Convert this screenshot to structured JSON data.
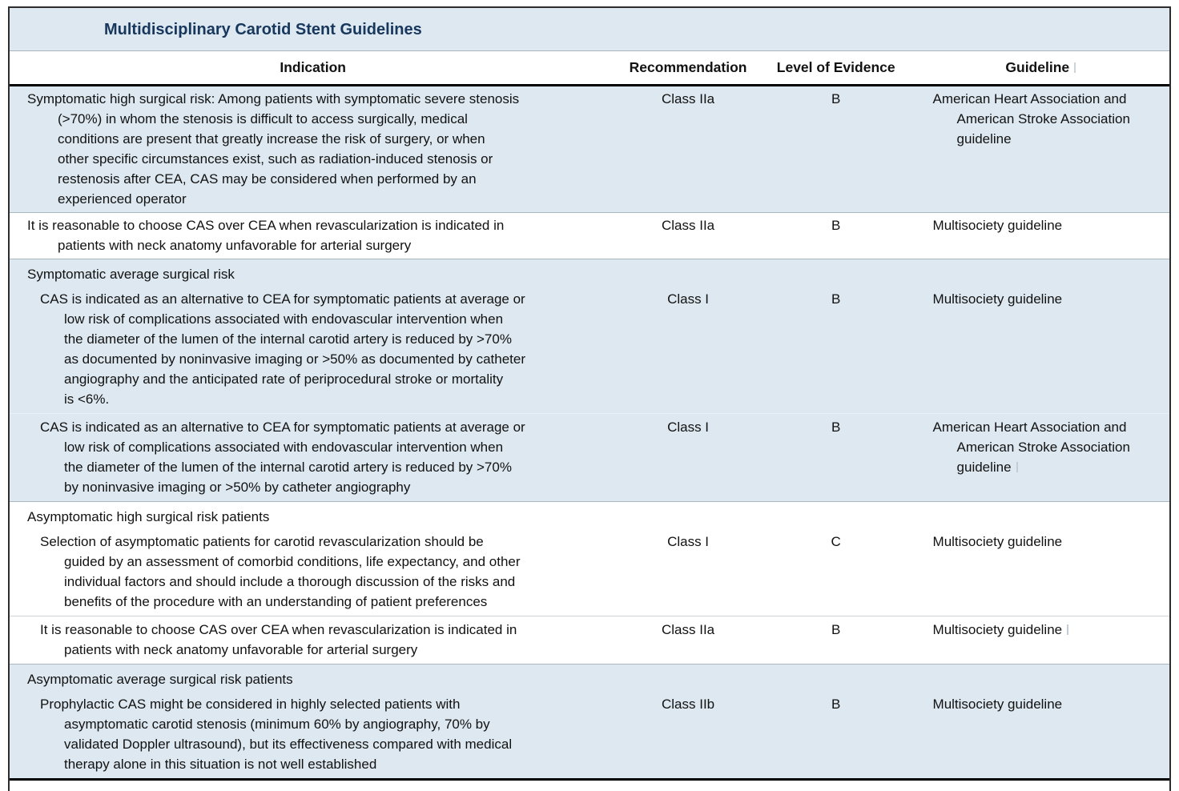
{
  "colors": {
    "band_blue": "#dde8f0",
    "title_navy": "#17375d",
    "rule_black": "#000000",
    "rule_gray": "#a9b7c1",
    "body_text": "#121212"
  },
  "table": {
    "title": "Multidisciplinary Carotid Stent Guidelines",
    "columns": {
      "indication": "Indication",
      "recommendation": "Recommendation",
      "evidence": "Level of Evidence",
      "guideline": "Guideline"
    },
    "header_mark": true,
    "rows": [
      {
        "type": "entry",
        "indication": "Symptomatic high surgical risk: Among patients with symptomatic severe stenosis\n(>70%) in whom the stenosis is difficult to access surgically, medical\nconditions are present that greatly increase the risk of surgery, or when\nother specific circumstances exist, such as radiation-induced stenosis or\nrestenosis after CEA, CAS may be considered when performed by an\nexperienced operator",
        "recommendation": "Class IIa",
        "evidence": "B",
        "guideline": "American Heart Association and\nAmerican Stroke Association\nguideline",
        "mark": false
      },
      {
        "type": "entry",
        "indication": "It is reasonable to choose CAS over CEA when revascularization is indicated in\npatients with neck anatomy unfavorable for arterial surgery",
        "recommendation": "Class IIa",
        "evidence": "B",
        "guideline": "Multisociety guideline",
        "mark": false
      },
      {
        "type": "section",
        "indication": "Symptomatic average surgical risk"
      },
      {
        "type": "entry",
        "indication": "CAS is indicated as an alternative to CEA for symptomatic patients at average or\nlow risk of complications associated with endovascular intervention when\nthe diameter of the lumen of the internal carotid artery is reduced by >70%\nas documented by noninvasive imaging or >50% as documented by catheter\nangiography and the anticipated rate of periprocedural stroke or mortality\nis <6%.",
        "recommendation": "Class I",
        "evidence": "B",
        "guideline": "Multisociety guideline",
        "mark": false
      },
      {
        "type": "entry",
        "indication": "CAS is indicated as an alternative to CEA for symptomatic patients at average or\nlow risk of complications associated with endovascular intervention when\nthe diameter of the lumen of the internal carotid artery is reduced by >70%\nby noninvasive imaging or >50% by catheter angiography",
        "recommendation": "Class I",
        "evidence": "B",
        "guideline": "American Heart Association and\nAmerican Stroke Association\nguideline",
        "mark": true
      },
      {
        "type": "section",
        "indication": "Asymptomatic high surgical risk patients"
      },
      {
        "type": "entry",
        "indication": "Selection of asymptomatic patients for carotid revascularization should be\nguided by an assessment of comorbid conditions, life expectancy, and other\nindividual factors and should include a thorough discussion of the risks and\nbenefits of the procedure with an understanding of patient preferences",
        "recommendation": "Class I",
        "evidence": "C",
        "guideline": "Multisociety guideline",
        "mark": false
      },
      {
        "type": "entry",
        "indication": "It is reasonable to choose CAS over CEA when revascularization is indicated in\npatients with neck anatomy unfavorable for arterial surgery",
        "recommendation": "Class IIa",
        "evidence": "B",
        "guideline": "Multisociety guideline",
        "mark": true
      },
      {
        "type": "section",
        "indication": "Asymptomatic average surgical risk patients"
      },
      {
        "type": "entry",
        "indication": "Prophylactic CAS might be considered in highly selected patients with\nasymptomatic carotid stenosis (minimum 60% by angiography, 70% by\nvalidated Doppler ultrasound), but its effectiveness compared with medical\ntherapy alone in this situation is not well established",
        "recommendation": "Class IIb",
        "evidence": "B",
        "guideline": "Multisociety guideline",
        "mark": false
      }
    ]
  }
}
